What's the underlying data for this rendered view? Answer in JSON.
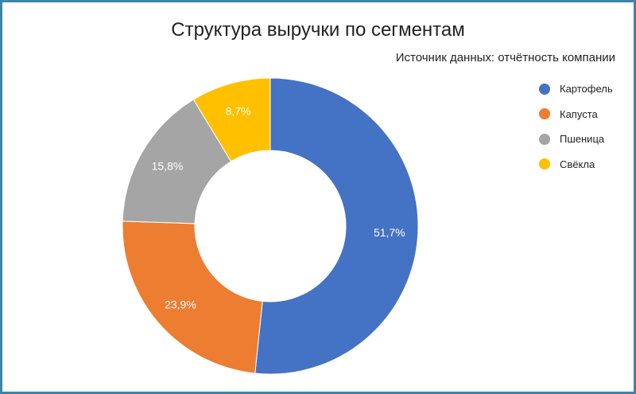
{
  "chart_data": {
    "type": "pie",
    "title": "Структура выручки по сегментам",
    "subtitle": "Источник данных: отчётность компании",
    "categories": [
      "Картофель",
      "Капуста",
      "Пшеница",
      "Свёкла"
    ],
    "values": [
      51.7,
      23.9,
      15.8,
      8.7
    ],
    "labels": [
      "51,7%",
      "23,9%",
      "15,8%",
      "8,7%"
    ],
    "colors": [
      "#4472c4",
      "#ed7d31",
      "#a5a5a5",
      "#ffc000"
    ],
    "legend_position": "right",
    "donut": true
  }
}
